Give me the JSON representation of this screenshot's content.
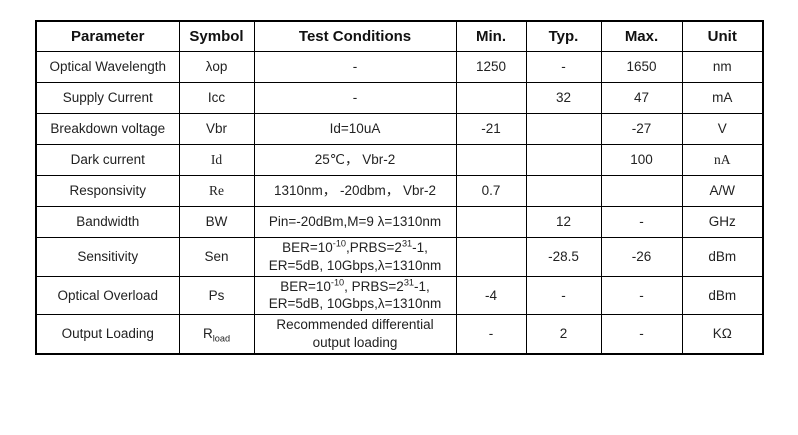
{
  "table": {
    "headers": [
      "Parameter",
      "Symbol",
      "Test Conditions",
      "Min.",
      "Typ.",
      "Max.",
      "Unit"
    ],
    "rows": [
      {
        "parameter": "Optical Wavelength",
        "symbol": "λop",
        "conditions": "-",
        "min": "1250",
        "typ": "-",
        "max": "1650",
        "unit": "nm",
        "serif": []
      },
      {
        "parameter": "Supply Current",
        "symbol": "Icc",
        "conditions": "-",
        "min": "",
        "typ": "32",
        "max": "47",
        "unit": "mA",
        "serif": []
      },
      {
        "parameter": "Breakdown voltage",
        "symbol": "Vbr",
        "conditions": "Id=10uA",
        "min": "-21",
        "typ": "",
        "max": "-27",
        "unit": "V",
        "serif": []
      },
      {
        "parameter": "Dark current",
        "symbol": "Id",
        "conditions": "25℃， Vbr-2",
        "min": "",
        "typ": "",
        "max": "100",
        "unit": "nA",
        "serif": [
          "symbol",
          "unit"
        ]
      },
      {
        "parameter": "Responsivity",
        "symbol": "Re",
        "conditions": "1310nm， -20dbm， Vbr-2",
        "min": "0.7",
        "typ": "",
        "max": "",
        "unit": "A/W",
        "serif": [
          "symbol"
        ]
      },
      {
        "parameter": "Bandwidth",
        "symbol": "BW",
        "conditions": "Pin=-20dBm,M=9 λ=1310nm",
        "min": "",
        "typ": "12",
        "max": "-",
        "unit": "GHz",
        "serif": []
      },
      {
        "parameter": "Sensitivity",
        "symbol": "Sen",
        "conditions": "BER=10^{-10},PRBS=2^{31}-1,\nER=5dB, 10Gbps,λ=1310nm",
        "min": "",
        "typ": "-28.5",
        "max": "-26",
        "unit": "dBm",
        "serif": []
      },
      {
        "parameter": "Optical Overload",
        "symbol": "Ps",
        "conditions": "BER=10^{-10}, PRBS=2^{31}-1,\nER=5dB, 10Gbps,λ=1310nm",
        "min": "-4",
        "typ": "-",
        "max": "-",
        "unit": "dBm",
        "serif": []
      },
      {
        "parameter": "Output Loading",
        "symbol": "R_{load}",
        "conditions": "Recommended differential\noutput loading",
        "min": "-",
        "typ": "2",
        "max": "-",
        "unit": "KΩ",
        "serif": []
      }
    ]
  }
}
